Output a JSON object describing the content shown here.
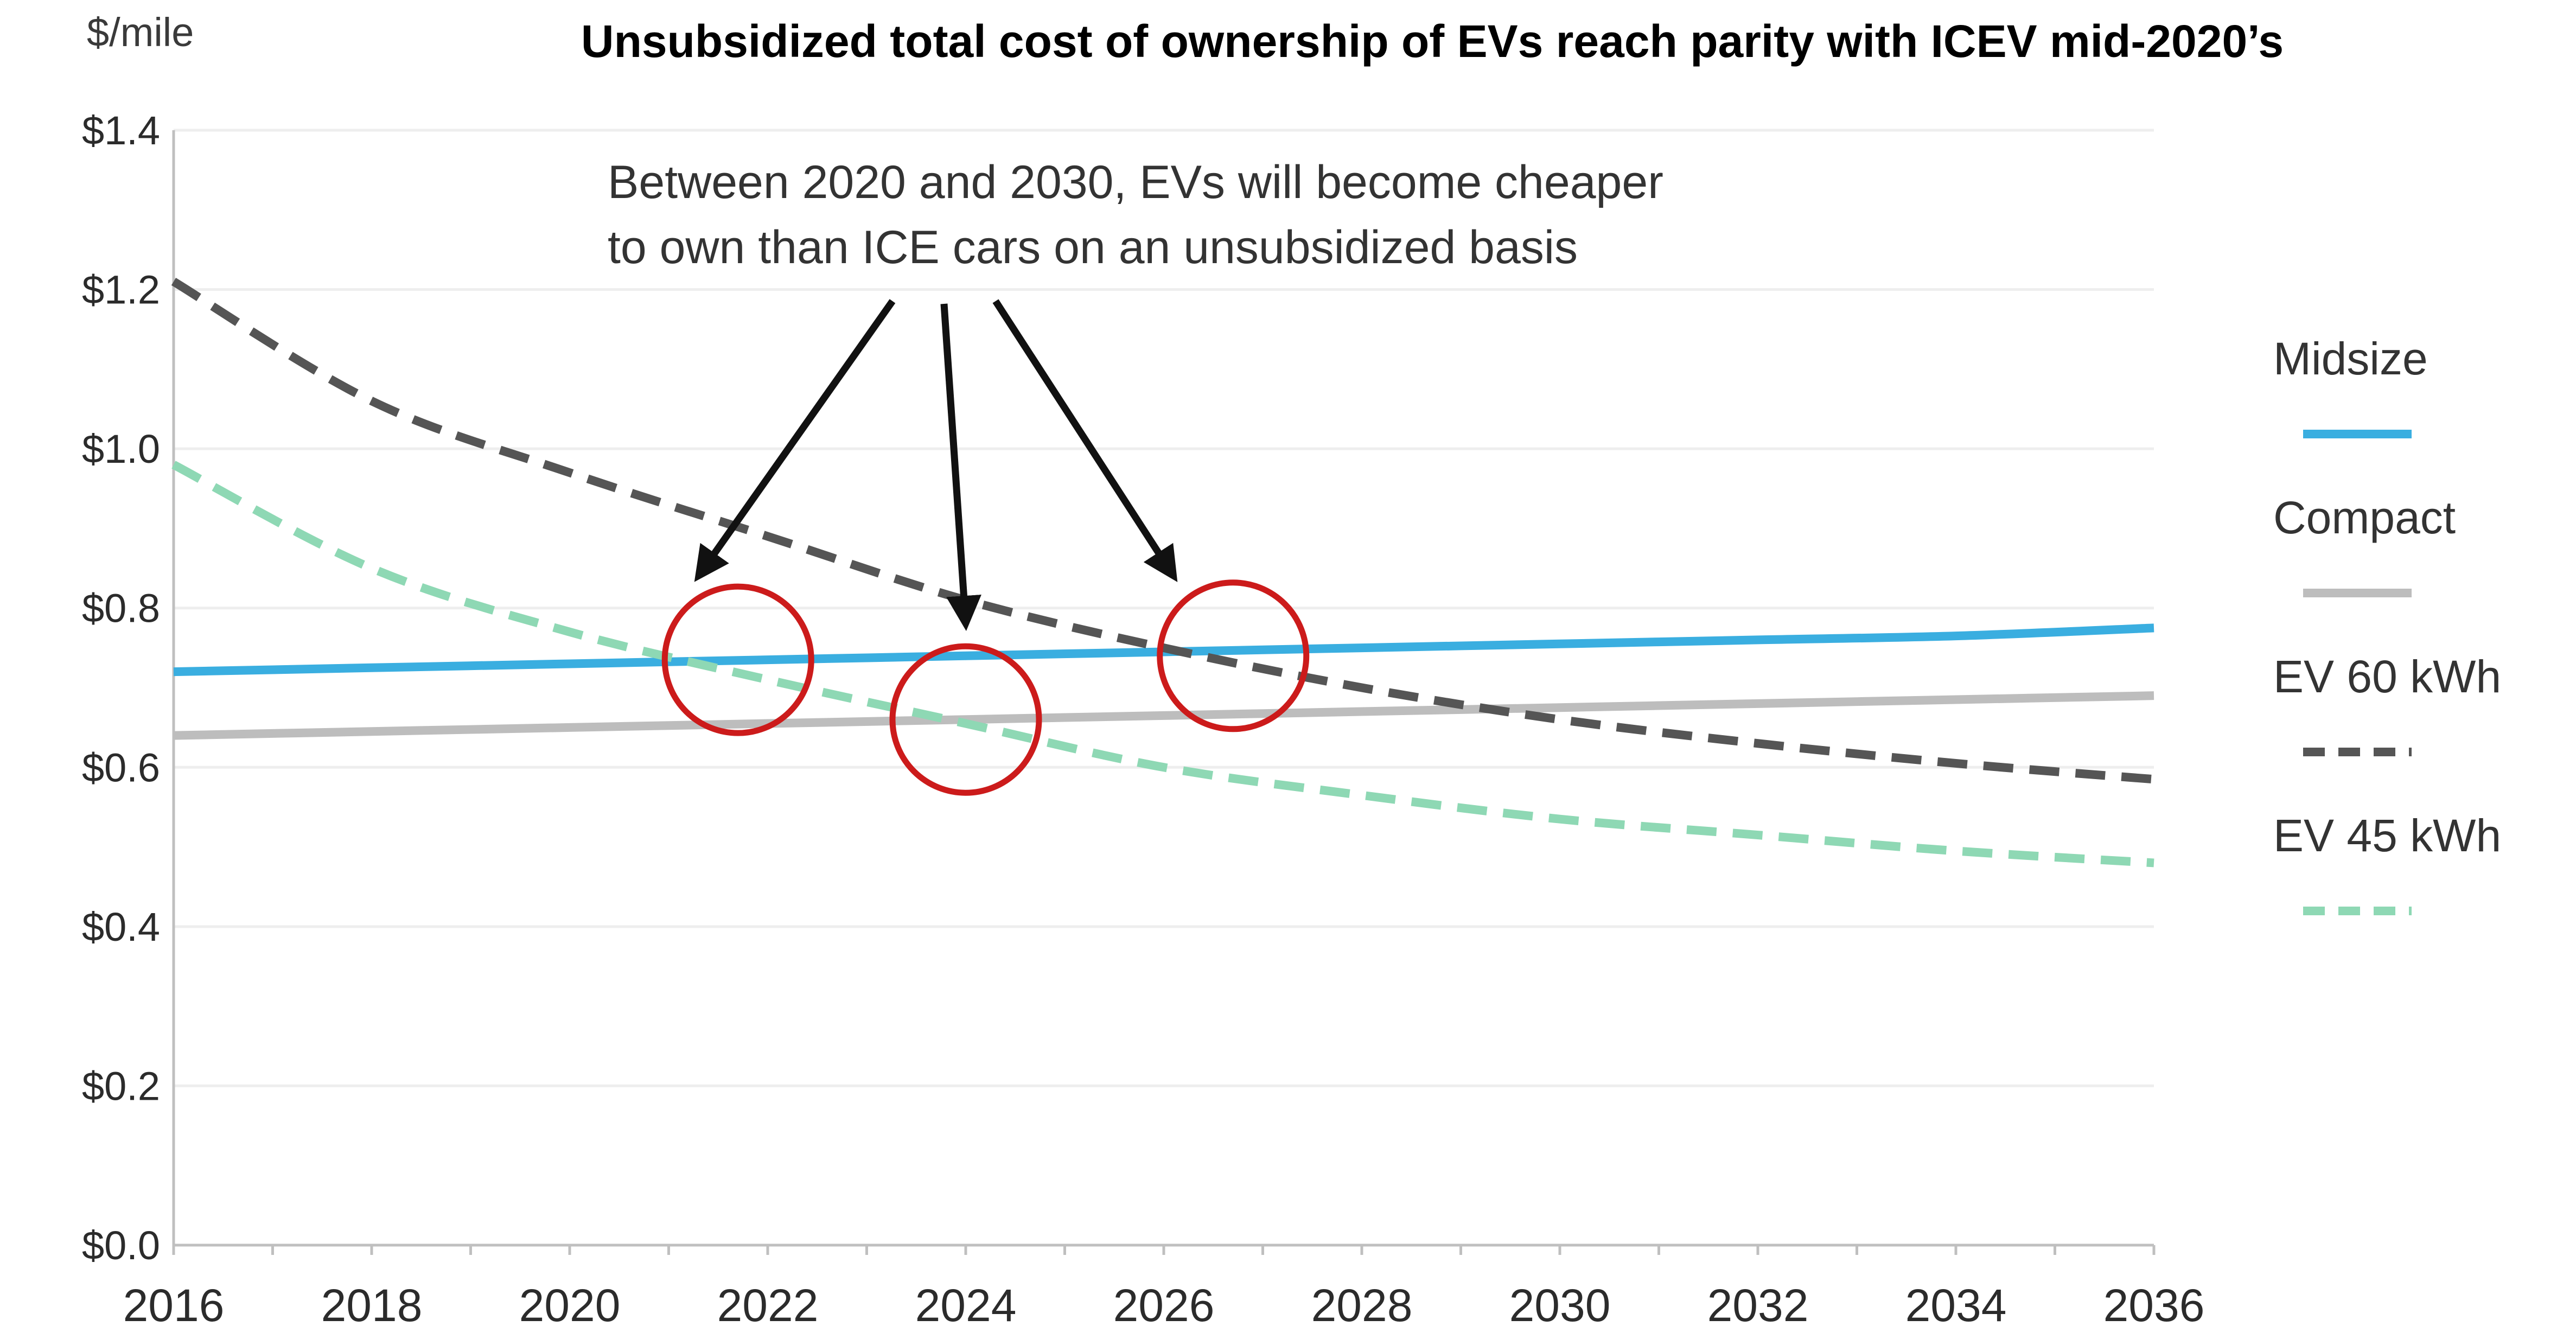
{
  "chart_data": {
    "type": "line",
    "title": "Unsubsidized total cost of ownership of EVs reach parity with ICEV mid-2020’s",
    "unit_label": "$/mile",
    "xlabel": "",
    "ylabel": "",
    "xlim": [
      2016,
      2036
    ],
    "ylim": [
      0,
      1.4
    ],
    "x_ticks": [
      "2016",
      "2018",
      "2020",
      "2022",
      "2024",
      "2026",
      "2028",
      "2030",
      "2032",
      "2034",
      "2036"
    ],
    "y_ticks": [
      "$0.0",
      "$0.2",
      "$0.4",
      "$0.6",
      "$0.8",
      "$1.0",
      "$1.2",
      "$1.4"
    ],
    "grid": true,
    "legend_position": "right",
    "x": [
      2016,
      2018,
      2020,
      2022,
      2024,
      2026,
      2028,
      2030,
      2032,
      2034,
      2036
    ],
    "series": [
      {
        "name": "Midsize",
        "style": "solid",
        "color": "#3aaee0",
        "values": [
          0.72,
          0.725,
          0.73,
          0.735,
          0.74,
          0.745,
          0.75,
          0.755,
          0.76,
          0.765,
          0.775
        ]
      },
      {
        "name": "Compact",
        "style": "solid",
        "color": "#bdbdbd",
        "values": [
          0.64,
          0.645,
          0.65,
          0.655,
          0.66,
          0.665,
          0.67,
          0.675,
          0.68,
          0.685,
          0.69
        ]
      },
      {
        "name": "EV 60 kWh",
        "style": "dashed",
        "color": "#555555",
        "values": [
          1.21,
          1.06,
          0.97,
          0.89,
          0.81,
          0.75,
          0.7,
          0.66,
          0.63,
          0.605,
          0.585
        ]
      },
      {
        "name": "EV 45 kWh",
        "style": "dashed",
        "color": "#8ed8b4",
        "values": [
          0.98,
          0.85,
          0.77,
          0.71,
          0.655,
          0.6,
          0.565,
          0.535,
          0.515,
          0.495,
          0.48
        ]
      }
    ],
    "annotation": {
      "lines": [
        "Between 2020 and 2030, EVs will become cheaper",
        "to own than ICE cars on an unsubsidized basis"
      ],
      "circle_color": "#cc1b1b",
      "circles": [
        {
          "x": 2021.7,
          "y": 0.735
        },
        {
          "x": 2024.0,
          "y": 0.66
        },
        {
          "x": 2026.7,
          "y": 0.74
        }
      ],
      "arrow_targets": [
        {
          "x": 2021.3,
          "y": 0.84
        },
        {
          "x": 2024.0,
          "y": 0.78
        },
        {
          "x": 2026.1,
          "y": 0.84
        }
      ]
    }
  }
}
